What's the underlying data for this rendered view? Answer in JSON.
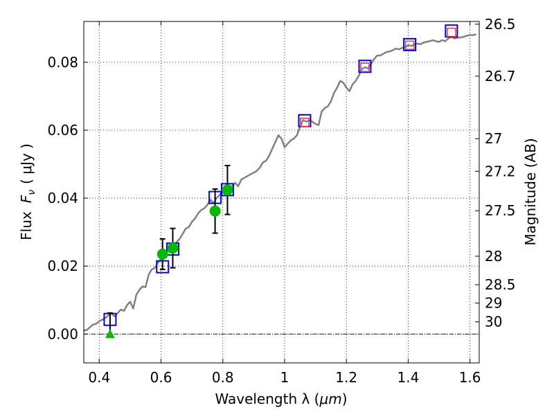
{
  "chart_data": {
    "type": "scatter",
    "title": "",
    "xlabel_text": "Wavelength  λ (",
    "xlabel_unit": "μm",
    "xlabel_end": ")",
    "ylabel_text": "Flux",
    "ylabel_symbol": "F",
    "ylabel_sub": "ν",
    "ylabel_unit": "( μJy )",
    "y2label": "Magnitude (AB)",
    "xlim": [
      0.35,
      1.63
    ],
    "ylim": [
      -0.0085,
      0.092
    ],
    "grid": true,
    "x_ticks": [
      {
        "value": 0.4,
        "label": "0.4"
      },
      {
        "value": 0.6,
        "label": "0.6"
      },
      {
        "value": 0.8,
        "label": "0.8"
      },
      {
        "value": 1.0,
        "label": "1"
      },
      {
        "value": 1.2,
        "label": "1.2"
      },
      {
        "value": 1.4,
        "label": "1.4"
      },
      {
        "value": 1.6,
        "label": "1.6"
      }
    ],
    "y_ticks": [
      {
        "value": 0.0,
        "label": "0.00"
      },
      {
        "value": 0.02,
        "label": "0.02"
      },
      {
        "value": 0.04,
        "label": "0.04"
      },
      {
        "value": 0.06,
        "label": "0.06"
      },
      {
        "value": 0.08,
        "label": "0.08"
      }
    ],
    "y2_ticks": [
      {
        "mag": "26.5",
        "value": 0.0912
      },
      {
        "mag": "26.7",
        "value": 0.0759
      },
      {
        "mag": "27",
        "value": 0.0575
      },
      {
        "mag": "27.2",
        "value": 0.0479
      },
      {
        "mag": "27.5",
        "value": 0.0363
      },
      {
        "mag": "28",
        "value": 0.0229
      },
      {
        "mag": "28.5",
        "value": 0.0145
      },
      {
        "mag": "29",
        "value": 0.0091
      },
      {
        "mag": "30",
        "value": 0.0036
      }
    ],
    "model_sed": {
      "color": "#808080",
      "points": [
        [
          0.35,
          0.001
        ],
        [
          0.36,
          0.0012
        ],
        [
          0.37,
          0.002
        ],
        [
          0.38,
          0.0028
        ],
        [
          0.39,
          0.003
        ],
        [
          0.4,
          0.0038
        ],
        [
          0.41,
          0.0042
        ],
        [
          0.42,
          0.0048
        ],
        [
          0.43,
          0.0055
        ],
        [
          0.44,
          0.006
        ],
        [
          0.45,
          0.0052
        ],
        [
          0.46,
          0.0062
        ],
        [
          0.47,
          0.0072
        ],
        [
          0.48,
          0.0068
        ],
        [
          0.49,
          0.0085
        ],
        [
          0.5,
          0.0095
        ],
        [
          0.51,
          0.0075
        ],
        [
          0.52,
          0.0115
        ],
        [
          0.53,
          0.013
        ],
        [
          0.54,
          0.014
        ],
        [
          0.55,
          0.0138
        ],
        [
          0.56,
          0.0175
        ],
        [
          0.57,
          0.019
        ],
        [
          0.58,
          0.0195
        ],
        [
          0.59,
          0.021
        ],
        [
          0.6,
          0.022
        ],
        [
          0.61,
          0.0235
        ],
        [
          0.62,
          0.0245
        ],
        [
          0.63,
          0.024
        ],
        [
          0.64,
          0.0255
        ],
        [
          0.65,
          0.027
        ],
        [
          0.66,
          0.028
        ],
        [
          0.67,
          0.0295
        ],
        [
          0.68,
          0.031
        ],
        [
          0.69,
          0.0315
        ],
        [
          0.7,
          0.033
        ],
        [
          0.71,
          0.034
        ],
        [
          0.72,
          0.0355
        ],
        [
          0.73,
          0.0365
        ],
        [
          0.74,
          0.037
        ],
        [
          0.75,
          0.038
        ],
        [
          0.76,
          0.0395
        ],
        [
          0.77,
          0.0385
        ],
        [
          0.78,
          0.04
        ],
        [
          0.79,
          0.041
        ],
        [
          0.8,
          0.0415
        ],
        [
          0.81,
          0.042
        ],
        [
          0.82,
          0.0425
        ],
        [
          0.83,
          0.0435
        ],
        [
          0.84,
          0.0445
        ],
        [
          0.85,
          0.0435
        ],
        [
          0.86,
          0.0455
        ],
        [
          0.87,
          0.046
        ],
        [
          0.88,
          0.0465
        ],
        [
          0.89,
          0.047
        ],
        [
          0.9,
          0.0475
        ],
        [
          0.91,
          0.048
        ],
        [
          0.92,
          0.049
        ],
        [
          0.93,
          0.0505
        ],
        [
          0.94,
          0.051
        ],
        [
          0.95,
          0.0525
        ],
        [
          0.96,
          0.0545
        ],
        [
          0.97,
          0.0565
        ],
        [
          0.98,
          0.0585
        ],
        [
          0.99,
          0.0575
        ],
        [
          1.0,
          0.055
        ],
        [
          1.01,
          0.056
        ],
        [
          1.02,
          0.057
        ],
        [
          1.03,
          0.0575
        ],
        [
          1.04,
          0.0585
        ],
        [
          1.05,
          0.061
        ],
        [
          1.06,
          0.063
        ],
        [
          1.07,
          0.0625
        ],
        [
          1.08,
          0.063
        ],
        [
          1.09,
          0.0625
        ],
        [
          1.1,
          0.0618
        ],
        [
          1.11,
          0.0615
        ],
        [
          1.12,
          0.0655
        ],
        [
          1.13,
          0.0665
        ],
        [
          1.14,
          0.067
        ],
        [
          1.15,
          0.0685
        ],
        [
          1.16,
          0.071
        ],
        [
          1.17,
          0.0725
        ],
        [
          1.18,
          0.0745
        ],
        [
          1.19,
          0.074
        ],
        [
          1.2,
          0.0725
        ],
        [
          1.21,
          0.0715
        ],
        [
          1.22,
          0.0735
        ],
        [
          1.23,
          0.0745
        ],
        [
          1.24,
          0.076
        ],
        [
          1.25,
          0.078
        ],
        [
          1.26,
          0.0785
        ],
        [
          1.27,
          0.0782
        ],
        [
          1.28,
          0.0795
        ],
        [
          1.29,
          0.081
        ],
        [
          1.3,
          0.082
        ],
        [
          1.31,
          0.082
        ],
        [
          1.32,
          0.0825
        ],
        [
          1.33,
          0.083
        ],
        [
          1.34,
          0.0832
        ],
        [
          1.35,
          0.0835
        ],
        [
          1.36,
          0.084
        ],
        [
          1.37,
          0.0838
        ],
        [
          1.38,
          0.0842
        ],
        [
          1.39,
          0.0845
        ],
        [
          1.4,
          0.085
        ],
        [
          1.41,
          0.0848
        ],
        [
          1.42,
          0.0852
        ],
        [
          1.43,
          0.0855
        ],
        [
          1.44,
          0.0853
        ],
        [
          1.45,
          0.0858
        ],
        [
          1.46,
          0.086
        ],
        [
          1.47,
          0.0862
        ],
        [
          1.48,
          0.0865
        ],
        [
          1.49,
          0.0862
        ],
        [
          1.5,
          0.086
        ],
        [
          1.51,
          0.0865
        ],
        [
          1.52,
          0.0862
        ],
        [
          1.53,
          0.087
        ],
        [
          1.54,
          0.0875
        ],
        [
          1.55,
          0.087
        ],
        [
          1.56,
          0.0872
        ],
        [
          1.57,
          0.0873
        ],
        [
          1.58,
          0.0875
        ],
        [
          1.59,
          0.0878
        ],
        [
          1.6,
          0.088
        ],
        [
          1.61,
          0.088
        ],
        [
          1.62,
          0.0882
        ]
      ]
    },
    "series": [
      {
        "marker": "square",
        "color": "#0000ee",
        "points": [
          [
            0.435,
            0.0043
          ],
          [
            0.605,
            0.0198
          ],
          [
            0.638,
            0.025
          ],
          [
            0.775,
            0.0402
          ],
          [
            0.815,
            0.0425
          ],
          [
            1.065,
            0.0628
          ],
          [
            1.26,
            0.0788
          ],
          [
            1.405,
            0.0852
          ],
          [
            1.54,
            0.0892
          ]
        ]
      },
      {
        "marker": "circle",
        "color": "#00bb00",
        "points": [
          {
            "x": 0.605,
            "y": 0.0235,
            "err": 0.0045
          },
          {
            "x": 0.638,
            "y": 0.0253,
            "err": 0.0058
          },
          {
            "x": 0.775,
            "y": 0.0362,
            "err": 0.0065
          },
          {
            "x": 0.815,
            "y": 0.0424,
            "err": 0.0072
          }
        ]
      },
      {
        "marker": "triangle",
        "color": "#00bb00",
        "points": [
          {
            "x": 0.435,
            "y": -0.0002,
            "err_up": 0.0064
          }
        ]
      },
      {
        "marker": "square-small",
        "color": "#ee3344",
        "points": [
          [
            1.065,
            0.0623
          ],
          [
            1.26,
            0.0785
          ],
          [
            1.405,
            0.085
          ],
          [
            1.54,
            0.0888
          ]
        ]
      }
    ]
  }
}
